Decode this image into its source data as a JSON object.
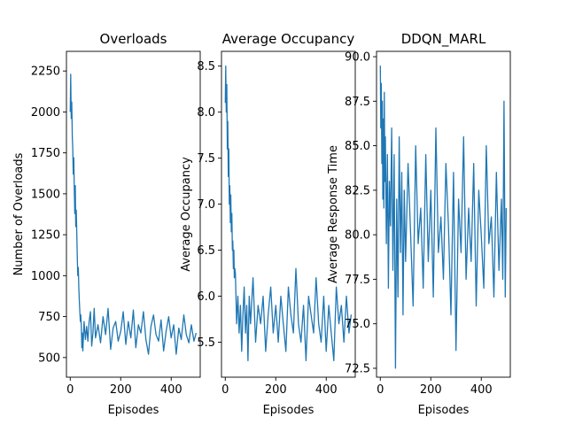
{
  "chart_data": [
    {
      "type": "line",
      "title": "Overloads",
      "xlabel": "Episodes",
      "ylabel": "Number of Overloads",
      "xlim": [
        -15,
        515
      ],
      "ylim": [
        380,
        2370
      ],
      "xticks": [
        0,
        200,
        400
      ],
      "xtick_labels": [
        "0",
        "200",
        "400"
      ],
      "yticks": [
        500,
        750,
        1000,
        1250,
        1500,
        1750,
        2000,
        2250
      ],
      "ytick_labels": [
        "500",
        "750",
        "1000",
        "1250",
        "1500",
        "1750",
        "2000",
        "2250"
      ],
      "series": [
        {
          "color": "#1f77b4",
          "x": [
            0,
            2,
            4,
            6,
            8,
            10,
            12,
            14,
            16,
            18,
            20,
            22,
            24,
            26,
            28,
            30,
            32,
            34,
            36,
            38,
            40,
            42,
            44,
            46,
            48,
            50,
            55,
            60,
            65,
            70,
            75,
            80,
            85,
            90,
            95,
            100,
            110,
            120,
            130,
            140,
            150,
            160,
            170,
            180,
            190,
            200,
            210,
            220,
            230,
            240,
            250,
            260,
            270,
            280,
            290,
            300,
            310,
            320,
            330,
            340,
            350,
            360,
            370,
            380,
            390,
            400,
            410,
            420,
            430,
            440,
            450,
            460,
            470,
            480,
            490,
            499
          ],
          "y": [
            2000,
            2230,
            1960,
            2060,
            1850,
            1780,
            1620,
            1720,
            1540,
            1380,
            1550,
            1300,
            1400,
            1250,
            1100,
            1000,
            1050,
            920,
            850,
            780,
            720,
            760,
            690,
            560,
            650,
            540,
            720,
            610,
            690,
            600,
            720,
            780,
            570,
            650,
            800,
            620,
            700,
            590,
            750,
            640,
            800,
            550,
            680,
            720,
            600,
            660,
            780,
            580,
            720,
            620,
            790,
            560,
            700,
            650,
            780,
            610,
            520,
            690,
            760,
            640,
            600,
            730,
            540,
            660,
            750,
            620,
            700,
            520,
            680,
            610,
            760,
            640,
            590,
            700,
            600,
            650
          ]
        }
      ]
    },
    {
      "type": "line",
      "title": "Average Occupancy",
      "xlabel": "Episodes",
      "ylabel": "Average Occupancy",
      "xlim": [
        -15,
        515
      ],
      "ylim": [
        5.12,
        8.66
      ],
      "xticks": [
        0,
        200,
        400
      ],
      "xtick_labels": [
        "0",
        "200",
        "400"
      ],
      "yticks": [
        5.5,
        6.0,
        6.5,
        7.0,
        7.5,
        8.0,
        8.5
      ],
      "ytick_labels": [
        "5.5",
        "6.0",
        "6.5",
        "7.0",
        "7.5",
        "8.0",
        "8.5"
      ],
      "series": [
        {
          "color": "#1f77b4",
          "x": [
            0,
            2,
            4,
            6,
            8,
            10,
            12,
            14,
            16,
            18,
            20,
            22,
            24,
            26,
            28,
            30,
            32,
            34,
            36,
            38,
            40,
            45,
            50,
            55,
            60,
            65,
            70,
            75,
            80,
            85,
            90,
            95,
            100,
            110,
            120,
            130,
            140,
            150,
            160,
            170,
            180,
            190,
            200,
            210,
            220,
            230,
            240,
            250,
            260,
            270,
            280,
            290,
            300,
            310,
            320,
            330,
            340,
            350,
            360,
            370,
            380,
            390,
            400,
            410,
            420,
            430,
            440,
            450,
            460,
            470,
            480,
            490,
            499
          ],
          "y": [
            8.1,
            8.5,
            8.0,
            8.3,
            7.6,
            7.9,
            7.3,
            7.6,
            7.0,
            7.2,
            6.8,
            7.1,
            6.7,
            6.9,
            6.5,
            6.6,
            6.3,
            6.5,
            6.2,
            6.3,
            6.25,
            5.7,
            6.0,
            5.6,
            5.9,
            5.4,
            5.8,
            6.1,
            5.6,
            5.9,
            5.3,
            6.0,
            5.7,
            6.2,
            5.5,
            5.9,
            5.7,
            6.0,
            5.4,
            5.8,
            6.1,
            5.6,
            5.9,
            5.5,
            6.0,
            5.7,
            5.4,
            6.1,
            5.8,
            5.6,
            6.3,
            5.7,
            5.5,
            5.9,
            5.3,
            6.0,
            5.8,
            5.6,
            6.2,
            5.7,
            5.5,
            6.0,
            5.4,
            5.9,
            5.6,
            5.3,
            6.1,
            5.7,
            5.9,
            5.5,
            6.0,
            5.6,
            5.8
          ]
        }
      ]
    },
    {
      "type": "line",
      "title": "DDQN_MARL",
      "xlabel": "Episodes",
      "ylabel": "Average Response Time",
      "xlim": [
        -15,
        515
      ],
      "ylim": [
        72.0,
        90.3
      ],
      "xticks": [
        0,
        200,
        400
      ],
      "xtick_labels": [
        "0",
        "200",
        "400"
      ],
      "yticks": [
        72.5,
        75.0,
        77.5,
        80.0,
        82.5,
        85.0,
        87.5,
        90.0
      ],
      "ytick_labels": [
        "72.5",
        "75.0",
        "77.5",
        "80.0",
        "82.5",
        "85.0",
        "87.5",
        "90.0"
      ],
      "series": [
        {
          "color": "#1f77b4",
          "x": [
            0,
            2,
            4,
            6,
            8,
            10,
            12,
            14,
            16,
            18,
            20,
            24,
            28,
            32,
            36,
            40,
            45,
            50,
            55,
            60,
            65,
            70,
            75,
            80,
            85,
            90,
            95,
            100,
            110,
            120,
            130,
            140,
            150,
            160,
            170,
            180,
            190,
            200,
            210,
            220,
            230,
            240,
            250,
            260,
            270,
            280,
            290,
            300,
            310,
            320,
            330,
            340,
            350,
            360,
            370,
            380,
            390,
            400,
            410,
            420,
            430,
            440,
            450,
            460,
            470,
            480,
            485,
            490,
            495,
            499
          ],
          "y": [
            89.5,
            86.0,
            88.5,
            84.0,
            87.5,
            82.0,
            86.5,
            81.5,
            88.0,
            83.0,
            85.5,
            79.5,
            84.5,
            77.0,
            83.0,
            80.5,
            86.0,
            78.0,
            84.5,
            72.5,
            82.0,
            76.5,
            85.5,
            79.0,
            83.5,
            75.5,
            82.5,
            78.5,
            84.0,
            80.0,
            76.0,
            85.0,
            79.5,
            81.5,
            77.0,
            84.5,
            78.5,
            82.5,
            76.5,
            86.0,
            79.0,
            81.0,
            77.5,
            84.0,
            80.5,
            75.5,
            83.5,
            73.5,
            82.0,
            79.0,
            85.5,
            77.5,
            81.5,
            78.5,
            84.0,
            76.0,
            82.5,
            80.0,
            77.0,
            85.0,
            79.5,
            81.0,
            76.5,
            83.5,
            78.0,
            82.0,
            77.5,
            87.5,
            76.5,
            81.5
          ]
        }
      ]
    }
  ]
}
